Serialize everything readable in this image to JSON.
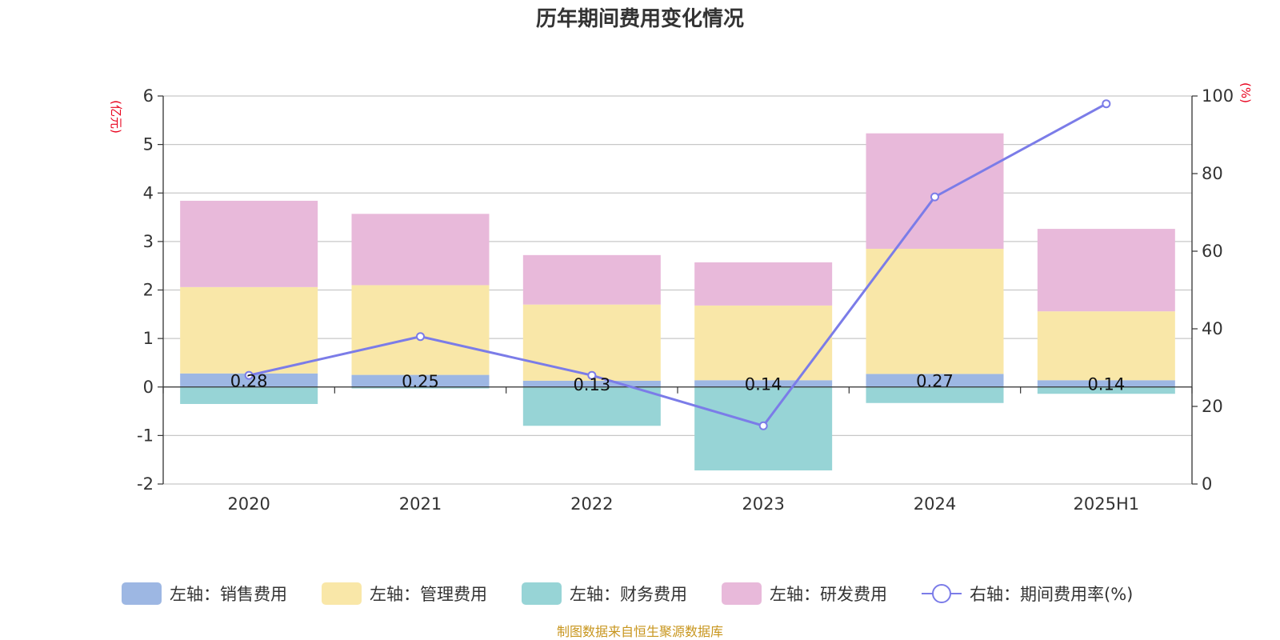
{
  "chart_data": {
    "type": "bar",
    "title": "历年期间费用变化情况",
    "categories": [
      "2020",
      "2021",
      "2022",
      "2023",
      "2024",
      "2025H1"
    ],
    "left_axis": {
      "unit": "(亿元)",
      "min": -2,
      "max": 6,
      "ticks": [
        -2,
        -1,
        0,
        1,
        2,
        3,
        4,
        5,
        6
      ]
    },
    "right_axis": {
      "unit": "(%)",
      "min": 0,
      "max": 100,
      "ticks": [
        0,
        20,
        40,
        60,
        80,
        100
      ]
    },
    "series": [
      {
        "name": "左轴：销售费用",
        "type": "bar",
        "axis": "left",
        "color": "#9db7e3",
        "values": [
          0.28,
          0.25,
          0.13,
          0.14,
          0.27,
          0.14
        ],
        "labels": [
          "0.28",
          "0.25",
          "0.13",
          "0.14",
          "0.27",
          "0.14"
        ]
      },
      {
        "name": "左轴：管理费用",
        "type": "bar",
        "axis": "left",
        "color": "#f9e7a8",
        "values": [
          1.78,
          1.85,
          1.57,
          1.54,
          2.58,
          1.42
        ]
      },
      {
        "name": "左轴：财务费用",
        "type": "bar",
        "axis": "left",
        "color": "#97d4d6",
        "values": [
          -0.35,
          -0.03,
          -0.8,
          -1.72,
          -0.33,
          -0.14
        ]
      },
      {
        "name": "左轴：研发费用",
        "type": "bar",
        "axis": "left",
        "color": "#e8b9da",
        "values": [
          1.78,
          1.47,
          1.02,
          0.89,
          2.38,
          1.7
        ]
      },
      {
        "name": "右轴：期间费用率(%)",
        "type": "line",
        "axis": "right",
        "color": "#7b7ce8",
        "values": [
          28,
          38,
          28,
          15,
          74,
          98
        ]
      }
    ],
    "grid": true,
    "legend_position": "bottom",
    "source": "制图数据来自恒生聚源数据库"
  }
}
